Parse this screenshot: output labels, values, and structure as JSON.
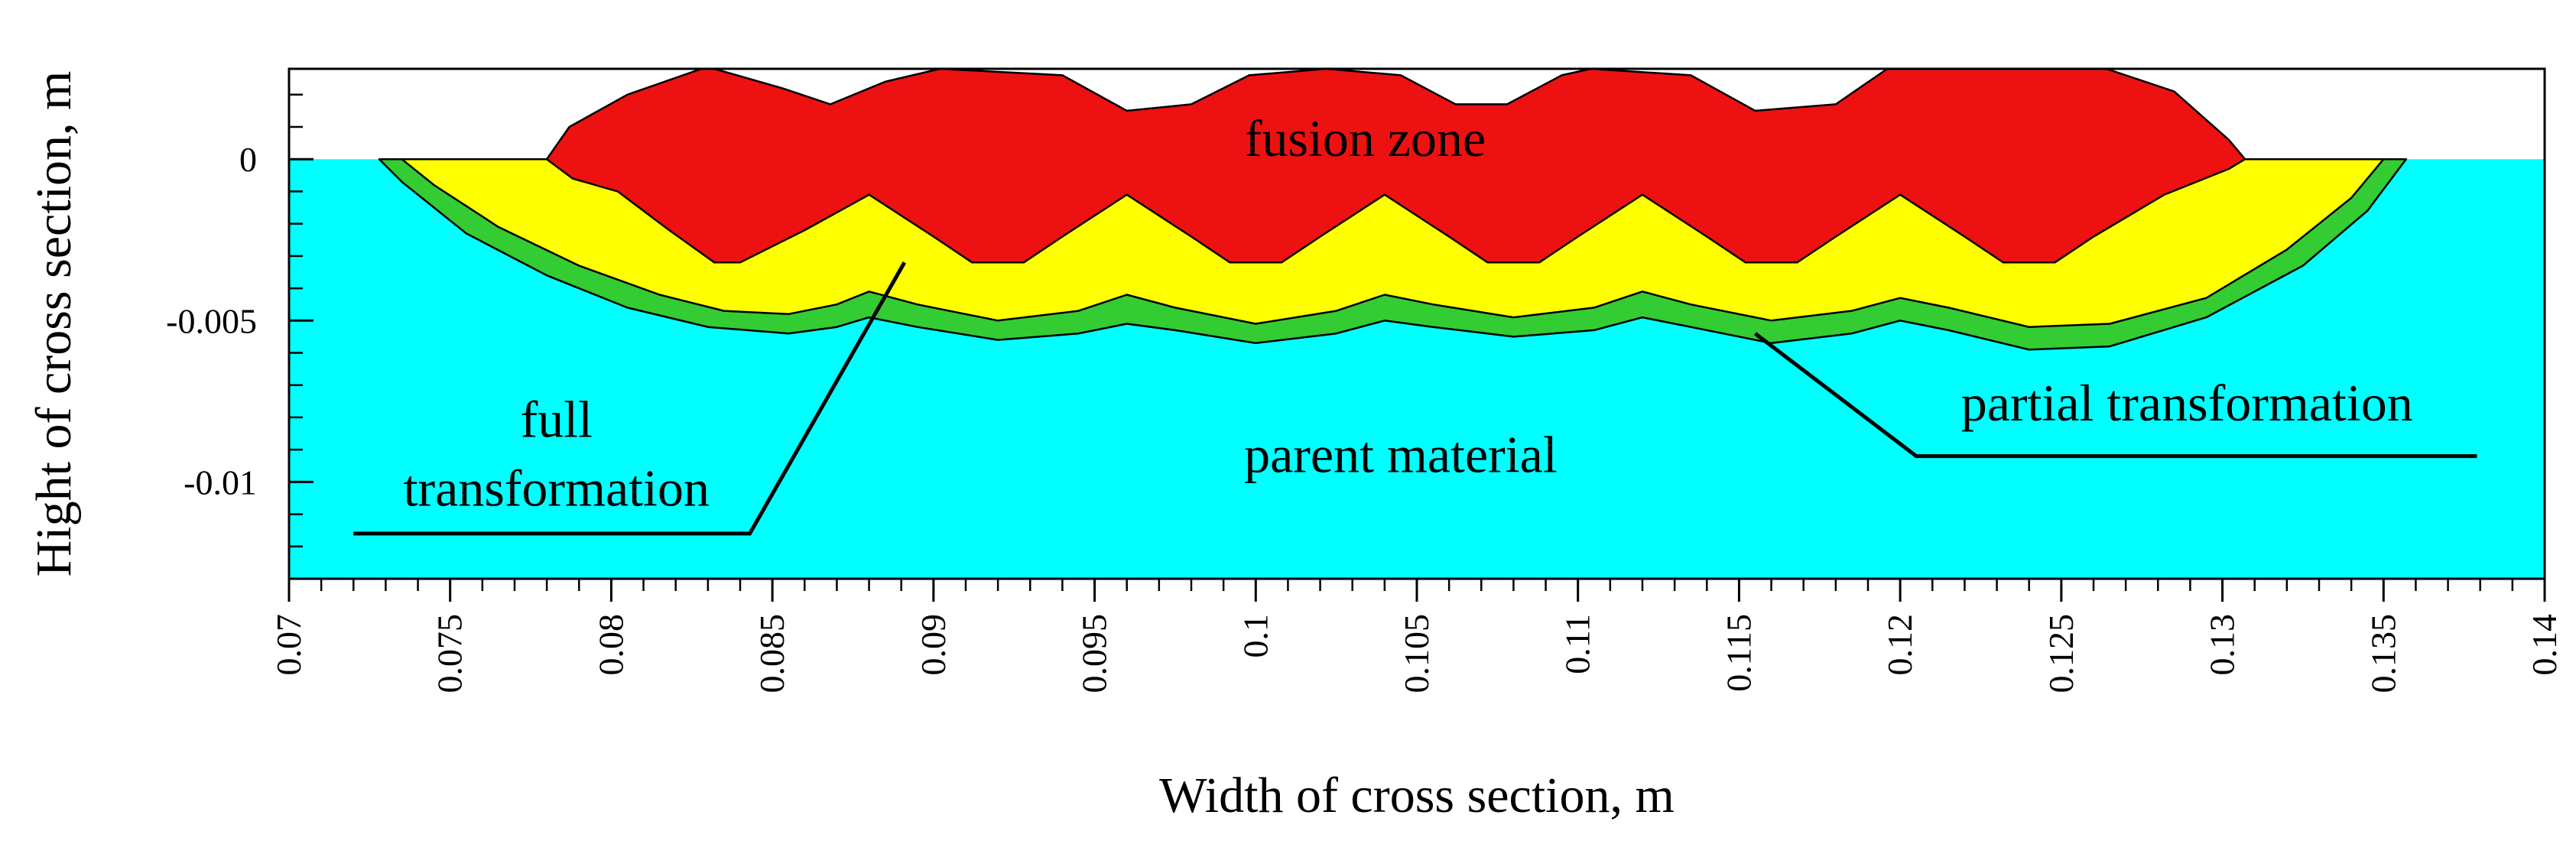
{
  "chart_data": {
    "type": "area",
    "title": "",
    "xlabel": "Width of cross section, m",
    "ylabel": "Hight of cross section, m",
    "xlim": [
      0.07,
      0.14
    ],
    "ylim": [
      -0.013,
      0.0028
    ],
    "x_ticks": [
      0.07,
      0.075,
      0.08,
      0.085,
      0.09,
      0.095,
      0.1,
      0.105,
      0.11,
      0.115,
      0.12,
      0.125,
      0.13,
      0.135,
      0.14
    ],
    "x_tick_labels": [
      "0.07",
      "0.075",
      "0.08",
      "0.085",
      "0.09",
      "0.095",
      "0.1",
      "0.105",
      "0.11",
      "0.115",
      "0.12",
      "0.125",
      "0.13",
      "0.135",
      "0.14"
    ],
    "x_minor_step": 0.001,
    "y_ticks": [
      0,
      -0.005,
      -0.01
    ],
    "y_tick_labels": [
      "0",
      "-0.005",
      "-0.01"
    ],
    "y_minor_step": 0.001,
    "regions": [
      {
        "name": "parent material",
        "color": "#00FFFF",
        "points": [
          [
            0.07,
            0
          ],
          [
            0.14,
            0
          ],
          [
            0.14,
            -0.013
          ],
          [
            0.07,
            -0.013
          ]
        ]
      },
      {
        "name": "partial transformation",
        "color": "#33CC33",
        "points": [
          [
            0.0728,
            0
          ],
          [
            0.0735,
            -0.0007
          ],
          [
            0.0755,
            -0.0023
          ],
          [
            0.078,
            -0.0036
          ],
          [
            0.0805,
            -0.0046
          ],
          [
            0.083,
            -0.0052
          ],
          [
            0.0855,
            -0.0054
          ],
          [
            0.087,
            -0.0052
          ],
          [
            0.088,
            -0.0049
          ],
          [
            0.0895,
            -0.0052
          ],
          [
            0.092,
            -0.0056
          ],
          [
            0.0945,
            -0.0054
          ],
          [
            0.096,
            -0.0051
          ],
          [
            0.0975,
            -0.0053
          ],
          [
            0.1,
            -0.0057
          ],
          [
            0.1025,
            -0.0054
          ],
          [
            0.104,
            -0.005
          ],
          [
            0.1055,
            -0.0052
          ],
          [
            0.108,
            -0.0055
          ],
          [
            0.1105,
            -0.0053
          ],
          [
            0.112,
            -0.0049
          ],
          [
            0.1135,
            -0.0052
          ],
          [
            0.116,
            -0.0057
          ],
          [
            0.1185,
            -0.0054
          ],
          [
            0.12,
            -0.005
          ],
          [
            0.1215,
            -0.0053
          ],
          [
            0.124,
            -0.0059
          ],
          [
            0.1265,
            -0.0058
          ],
          [
            0.1295,
            -0.0049
          ],
          [
            0.1325,
            -0.0033
          ],
          [
            0.1345,
            -0.0016
          ],
          [
            0.1357,
            0
          ]
        ]
      },
      {
        "name": "full transformation",
        "color": "#FFFF00",
        "points": [
          [
            0.0735,
            0
          ],
          [
            0.0745,
            -0.0008
          ],
          [
            0.0765,
            -0.0021
          ],
          [
            0.079,
            -0.0033
          ],
          [
            0.0815,
            -0.0042
          ],
          [
            0.0835,
            -0.0047
          ],
          [
            0.0855,
            -0.0048
          ],
          [
            0.087,
            -0.0045
          ],
          [
            0.088,
            -0.0041
          ],
          [
            0.0895,
            -0.0045
          ],
          [
            0.092,
            -0.005
          ],
          [
            0.0945,
            -0.0047
          ],
          [
            0.096,
            -0.0042
          ],
          [
            0.0975,
            -0.0046
          ],
          [
            0.1,
            -0.0051
          ],
          [
            0.1025,
            -0.0047
          ],
          [
            0.104,
            -0.0042
          ],
          [
            0.1055,
            -0.0045
          ],
          [
            0.108,
            -0.0049
          ],
          [
            0.1105,
            -0.0046
          ],
          [
            0.112,
            -0.0041
          ],
          [
            0.1135,
            -0.0045
          ],
          [
            0.116,
            -0.005
          ],
          [
            0.1185,
            -0.0047
          ],
          [
            0.12,
            -0.0043
          ],
          [
            0.1215,
            -0.0046
          ],
          [
            0.124,
            -0.0052
          ],
          [
            0.1265,
            -0.0051
          ],
          [
            0.1295,
            -0.0043
          ],
          [
            0.132,
            -0.0028
          ],
          [
            0.134,
            -0.0012
          ],
          [
            0.135,
            0
          ]
        ]
      },
      {
        "name": "fusion zone",
        "color": "#EE1111",
        "points": [
          [
            0.078,
            0
          ],
          [
            0.0788,
            -0.0006
          ],
          [
            0.0802,
            -0.001
          ],
          [
            0.0818,
            -0.0022
          ],
          [
            0.0832,
            -0.0032
          ],
          [
            0.084,
            -0.0032
          ],
          [
            0.086,
            -0.0022
          ],
          [
            0.088,
            -0.0011
          ],
          [
            0.09,
            -0.0024
          ],
          [
            0.0912,
            -0.0032
          ],
          [
            0.0928,
            -0.0032
          ],
          [
            0.094,
            -0.0024
          ],
          [
            0.096,
            -0.0011
          ],
          [
            0.098,
            -0.0024
          ],
          [
            0.0992,
            -0.0032
          ],
          [
            0.1008,
            -0.0032
          ],
          [
            0.102,
            -0.0024
          ],
          [
            0.104,
            -0.0011
          ],
          [
            0.106,
            -0.0024
          ],
          [
            0.1072,
            -0.0032
          ],
          [
            0.1088,
            -0.0032
          ],
          [
            0.11,
            -0.0024
          ],
          [
            0.112,
            -0.0011
          ],
          [
            0.114,
            -0.0024
          ],
          [
            0.1152,
            -0.0032
          ],
          [
            0.1168,
            -0.0032
          ],
          [
            0.118,
            -0.0024
          ],
          [
            0.12,
            -0.0011
          ],
          [
            0.122,
            -0.0024
          ],
          [
            0.1232,
            -0.0032
          ],
          [
            0.1248,
            -0.0032
          ],
          [
            0.126,
            -0.0024
          ],
          [
            0.1282,
            -0.0011
          ],
          [
            0.1302,
            -0.0003
          ],
          [
            0.1307,
            0
          ],
          [
            0.1302,
            0.0006
          ],
          [
            0.1285,
            0.0021
          ],
          [
            0.1264,
            0.0028
          ],
          [
            0.1196,
            0.0028
          ],
          [
            0.118,
            0.0017
          ],
          [
            0.1155,
            0.0015
          ],
          [
            0.1135,
            0.0026
          ],
          [
            0.1104,
            0.0028
          ],
          [
            0.1095,
            0.0026
          ],
          [
            0.1078,
            0.0017
          ],
          [
            0.1062,
            0.0017
          ],
          [
            0.1045,
            0.0026
          ],
          [
            0.1022,
            0.0028
          ],
          [
            0.0998,
            0.0026
          ],
          [
            0.098,
            0.0017
          ],
          [
            0.096,
            0.0015
          ],
          [
            0.094,
            0.0026
          ],
          [
            0.0902,
            0.0028
          ],
          [
            0.0885,
            0.0024
          ],
          [
            0.0868,
            0.0017
          ],
          [
            0.0853,
            0.0022
          ],
          [
            0.0832,
            0.0028
          ],
          [
            0.0828,
            0.0028
          ],
          [
            0.0805,
            0.002
          ],
          [
            0.0787,
            0.001
          ]
        ]
      }
    ],
    "annotations": [
      {
        "id": "fusion",
        "lines": [
          "fusion zone"
        ],
        "text_x": 0.1034,
        "text_y": 0.0001,
        "anchor": "middle",
        "leader": []
      },
      {
        "id": "full",
        "lines": [
          "full",
          "transformation"
        ],
        "text_x": 0.0783,
        "text_y": -0.0086,
        "anchor": "middle",
        "leader": [
          [
            0.072,
            -0.0116
          ],
          [
            0.0843,
            -0.0116
          ],
          [
            0.0891,
            -0.0032
          ]
        ]
      },
      {
        "id": "parent",
        "lines": [
          "parent material"
        ],
        "text_x": 0.1045,
        "text_y": -0.0097,
        "anchor": "middle",
        "leader": []
      },
      {
        "id": "partial",
        "lines": [
          "partial transformation"
        ],
        "text_x": 0.1289,
        "text_y": -0.0081,
        "anchor": "middle",
        "leader": [
          [
            0.1155,
            -0.0054
          ],
          [
            0.1205,
            -0.0092
          ],
          [
            0.1379,
            -0.0092
          ]
        ]
      }
    ]
  }
}
